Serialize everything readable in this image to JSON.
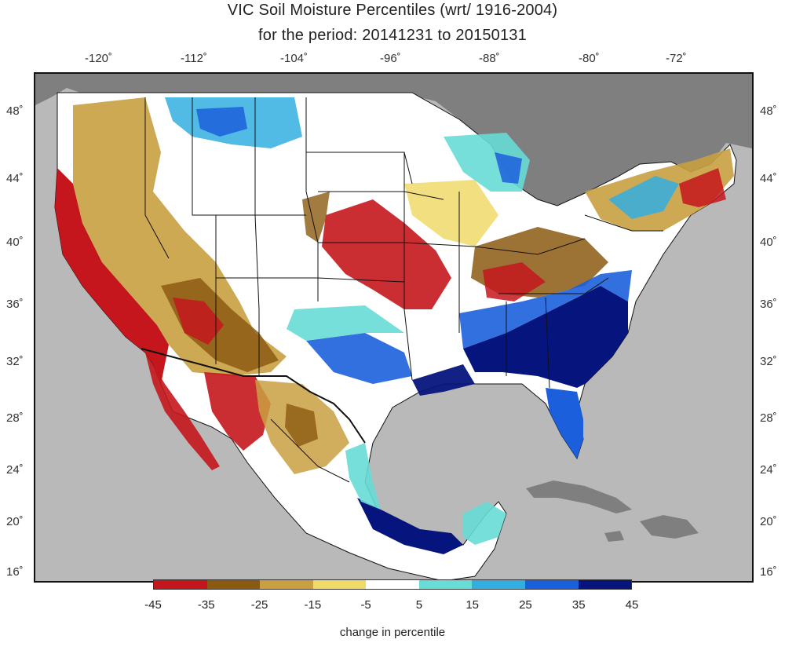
{
  "title": {
    "line1": "VIC Soil Moisture Percentiles (wrt/ 1916-2004)",
    "line2": "for the period:   20141231   to   20150131"
  },
  "axes": {
    "lon_ticks": [
      "-120˚",
      "-112˚",
      "-104˚",
      "-96˚",
      "-88˚",
      "-80˚",
      "-72˚"
    ],
    "lat_ticks": [
      "48˚",
      "44˚",
      "40˚",
      "36˚",
      "32˚",
      "28˚",
      "24˚",
      "20˚",
      "16˚"
    ]
  },
  "map": {
    "ocean_color": "#b9b9b9",
    "land_outside_color": "#7f7f7f",
    "regions": [
      {
        "name": "pacific-coast-dry",
        "class": -45
      },
      {
        "name": "great-basin",
        "class": -20
      },
      {
        "name": "northern-rockies-wet",
        "class": 30
      },
      {
        "name": "northern-plains-normal",
        "class": 0
      },
      {
        "name": "central-plains-dry",
        "class": -45
      },
      {
        "name": "upper-midwest-normal",
        "class": 0
      },
      {
        "name": "great-lakes-wet",
        "class": 25
      },
      {
        "name": "ohio-valley-dry",
        "class": -35
      },
      {
        "name": "southeast-very-wet",
        "class": 45
      },
      {
        "name": "gulf-coast-wet",
        "class": 35
      },
      {
        "name": "texas-mixed",
        "class": 10
      },
      {
        "name": "new-england-dry",
        "class": -40
      },
      {
        "name": "northwest-mexico-dry",
        "class": -45
      },
      {
        "name": "central-mexico-mixed",
        "class": -15
      },
      {
        "name": "southern-mexico-wet",
        "class": 45
      },
      {
        "name": "yucatan-wet",
        "class": 15
      },
      {
        "name": "florida-wet",
        "class": 30
      }
    ]
  },
  "legend": {
    "colors": [
      "#c4161c",
      "#8b5a12",
      "#c9a041",
      "#f0da6a",
      "#ffffff",
      "#68dcd6",
      "#33aee0",
      "#1c5fdc",
      "#06147d"
    ],
    "labels": [
      "-45",
      "-35",
      "-25",
      "-15",
      "-5",
      "5",
      "15",
      "25",
      "35",
      "45"
    ],
    "caption": "change in percentile"
  }
}
